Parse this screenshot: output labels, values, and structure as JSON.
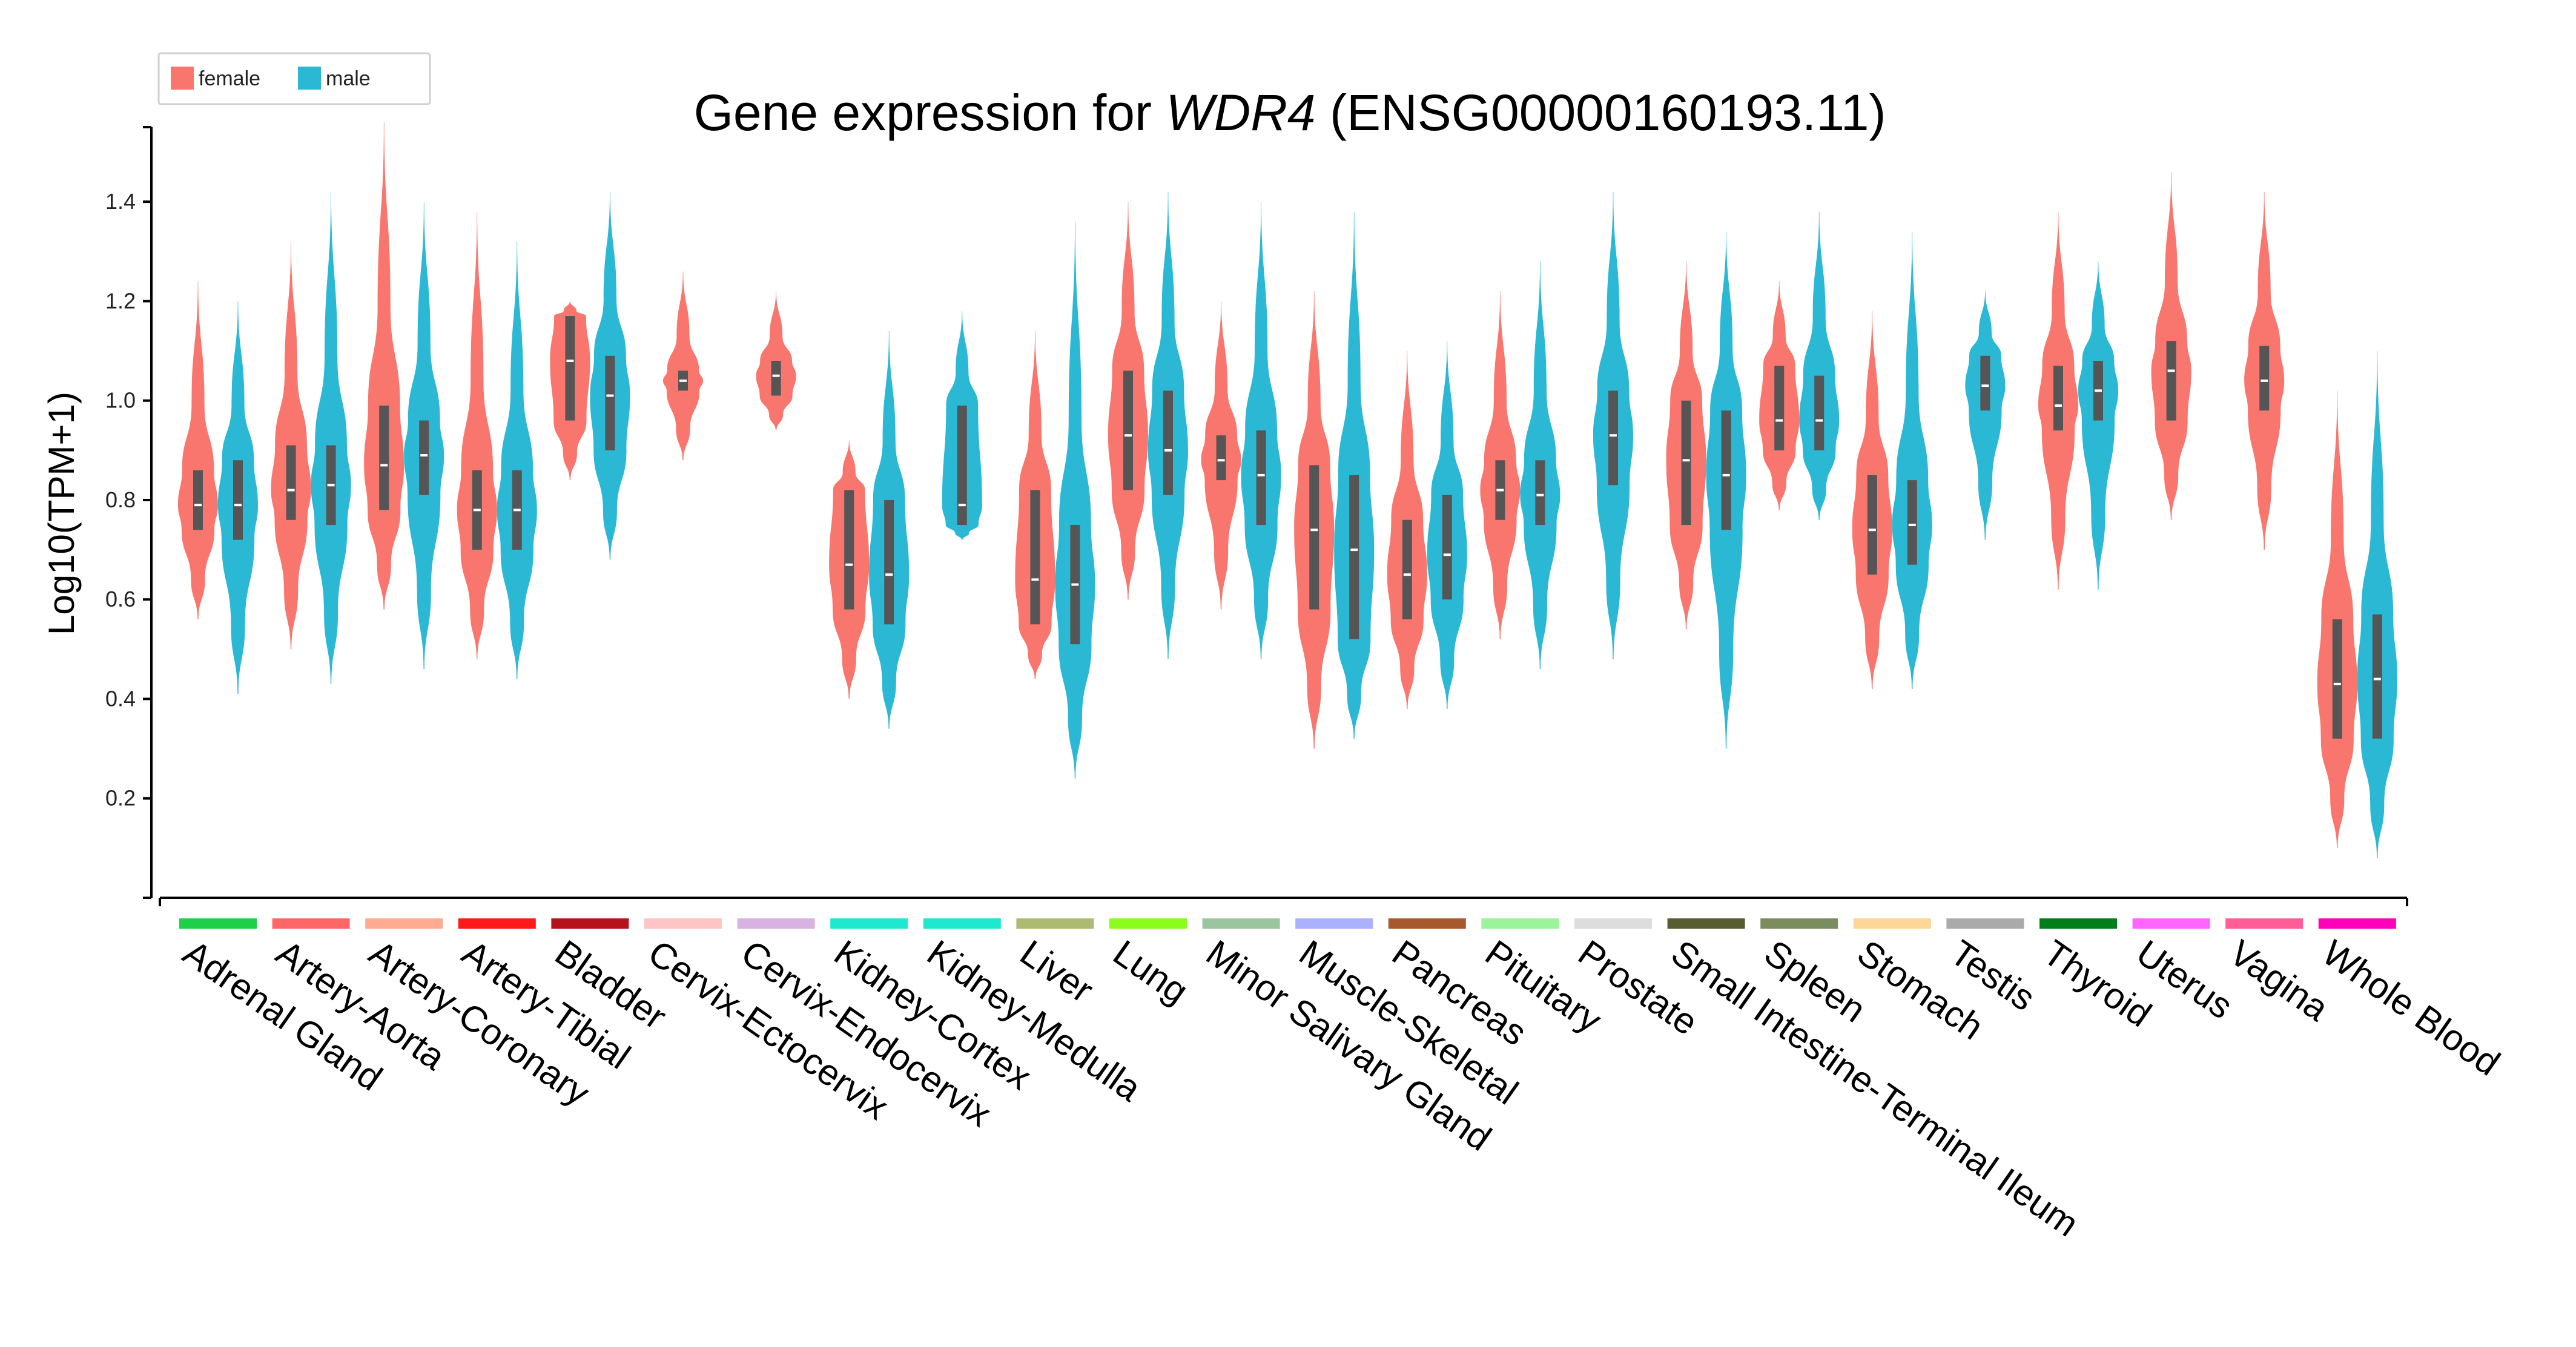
{
  "chart_data": {
    "type": "violin",
    "title_prefix": "Gene expression for ",
    "title_gene": "WDR4",
    "title_suffix": " (ENSG00000160193.11)",
    "ylabel": "Log10(TPM+1)",
    "xlabel": "",
    "ylim": [
      0,
      1.55
    ],
    "yticks": [
      0.2,
      0.4,
      0.6,
      0.8,
      1.0,
      1.2,
      1.4
    ],
    "ytick_labels": [
      "0.2",
      "0.4",
      "0.6",
      "0.8",
      "1.0",
      "1.2",
      "1.4"
    ],
    "legend": {
      "position": "top-left",
      "entries": [
        {
          "label": "female",
          "color": "#f8766d"
        },
        {
          "label": "male",
          "color": "#2ab8d4"
        }
      ]
    },
    "colors": {
      "female": "#f8766d",
      "male": "#2ab8d4",
      "box": "#555555",
      "median": "#ffffff"
    },
    "categories": [
      {
        "name": "Adrenal Gland",
        "tissue_color": "#1fcf4a",
        "violins": [
          {
            "sex": "female",
            "min": 0.56,
            "q1": 0.74,
            "median": 0.79,
            "q3": 0.86,
            "max": 1.24
          },
          {
            "sex": "male",
            "min": 0.41,
            "q1": 0.72,
            "median": 0.79,
            "q3": 0.88,
            "max": 1.2
          }
        ]
      },
      {
        "name": "Artery-Aorta",
        "tissue_color": "#ff6666",
        "violins": [
          {
            "sex": "female",
            "min": 0.5,
            "q1": 0.76,
            "median": 0.82,
            "q3": 0.91,
            "max": 1.32
          },
          {
            "sex": "male",
            "min": 0.43,
            "q1": 0.75,
            "median": 0.83,
            "q3": 0.91,
            "max": 1.42
          }
        ]
      },
      {
        "name": "Artery-Coronary",
        "tissue_color": "#ffab92",
        "violins": [
          {
            "sex": "female",
            "min": 0.58,
            "q1": 0.78,
            "median": 0.87,
            "q3": 0.99,
            "max": 1.56
          },
          {
            "sex": "male",
            "min": 0.46,
            "q1": 0.81,
            "median": 0.89,
            "q3": 0.96,
            "max": 1.4
          }
        ]
      },
      {
        "name": "Artery-Tibial",
        "tissue_color": "#ff1a1a",
        "violins": [
          {
            "sex": "female",
            "min": 0.48,
            "q1": 0.7,
            "median": 0.78,
            "q3": 0.86,
            "max": 1.38
          },
          {
            "sex": "male",
            "min": 0.44,
            "q1": 0.7,
            "median": 0.78,
            "q3": 0.86,
            "max": 1.32
          }
        ]
      },
      {
        "name": "Bladder",
        "tissue_color": "#b5121b",
        "violins": [
          {
            "sex": "female",
            "min": 0.84,
            "q1": 0.96,
            "median": 1.08,
            "q3": 1.17,
            "max": 1.2
          },
          {
            "sex": "male",
            "min": 0.68,
            "q1": 0.9,
            "median": 1.01,
            "q3": 1.09,
            "max": 1.42
          }
        ]
      },
      {
        "name": "Cervix-Ectocervix",
        "tissue_color": "#ffc4c4",
        "violins": [
          {
            "sex": "female",
            "min": 0.88,
            "q1": 1.02,
            "median": 1.04,
            "q3": 1.06,
            "max": 1.26
          }
        ]
      },
      {
        "name": "Cervix-Endocervix",
        "tissue_color": "#d8b2e0",
        "violins": [
          {
            "sex": "female",
            "min": 0.94,
            "q1": 1.01,
            "median": 1.05,
            "q3": 1.08,
            "max": 1.22
          }
        ]
      },
      {
        "name": "Kidney-Cortex",
        "tissue_color": "#1fe8d0",
        "violins": [
          {
            "sex": "female",
            "min": 0.4,
            "q1": 0.58,
            "median": 0.67,
            "q3": 0.82,
            "max": 0.92
          },
          {
            "sex": "male",
            "min": 0.34,
            "q1": 0.55,
            "median": 0.65,
            "q3": 0.8,
            "max": 1.14
          }
        ]
      },
      {
        "name": "Kidney-Medulla",
        "tissue_color": "#1fe8d0",
        "violins": [
          {
            "sex": "male",
            "min": 0.72,
            "q1": 0.75,
            "median": 0.79,
            "q3": 0.99,
            "max": 1.18
          }
        ]
      },
      {
        "name": "Liver",
        "tissue_color": "#adbb72",
        "violins": [
          {
            "sex": "female",
            "min": 0.44,
            "q1": 0.55,
            "median": 0.64,
            "q3": 0.82,
            "max": 1.14
          },
          {
            "sex": "male",
            "min": 0.24,
            "q1": 0.51,
            "median": 0.63,
            "q3": 0.75,
            "max": 1.36
          }
        ]
      },
      {
        "name": "Lung",
        "tissue_color": "#8bfc1b",
        "violins": [
          {
            "sex": "female",
            "min": 0.6,
            "q1": 0.82,
            "median": 0.93,
            "q3": 1.06,
            "max": 1.4
          },
          {
            "sex": "male",
            "min": 0.48,
            "q1": 0.81,
            "median": 0.9,
            "q3": 1.02,
            "max": 1.42
          }
        ]
      },
      {
        "name": "Minor Salivary Gland",
        "tissue_color": "#9bc59e",
        "violins": [
          {
            "sex": "female",
            "min": 0.58,
            "q1": 0.84,
            "median": 0.88,
            "q3": 0.93,
            "max": 1.2
          },
          {
            "sex": "male",
            "min": 0.48,
            "q1": 0.75,
            "median": 0.85,
            "q3": 0.94,
            "max": 1.4
          }
        ]
      },
      {
        "name": "Muscle-Skeletal",
        "tissue_color": "#aab2ff",
        "violins": [
          {
            "sex": "female",
            "min": 0.3,
            "q1": 0.58,
            "median": 0.74,
            "q3": 0.87,
            "max": 1.22
          },
          {
            "sex": "male",
            "min": 0.32,
            "q1": 0.52,
            "median": 0.7,
            "q3": 0.85,
            "max": 1.38
          }
        ]
      },
      {
        "name": "Pancreas",
        "tissue_color": "#a7592d",
        "violins": [
          {
            "sex": "female",
            "min": 0.38,
            "q1": 0.56,
            "median": 0.65,
            "q3": 0.76,
            "max": 1.1
          },
          {
            "sex": "male",
            "min": 0.38,
            "q1": 0.6,
            "median": 0.69,
            "q3": 0.81,
            "max": 1.12
          }
        ]
      },
      {
        "name": "Pituitary",
        "tissue_color": "#9bf39b",
        "violins": [
          {
            "sex": "female",
            "min": 0.52,
            "q1": 0.76,
            "median": 0.82,
            "q3": 0.88,
            "max": 1.22
          },
          {
            "sex": "male",
            "min": 0.46,
            "q1": 0.75,
            "median": 0.81,
            "q3": 0.88,
            "max": 1.28
          }
        ]
      },
      {
        "name": "Prostate",
        "tissue_color": "#dddddd",
        "violins": [
          {
            "sex": "male",
            "min": 0.48,
            "q1": 0.83,
            "median": 0.93,
            "q3": 1.02,
            "max": 1.42
          }
        ]
      },
      {
        "name": "Small Intestine-Terminal Ileum",
        "tissue_color": "#575d30",
        "violins": [
          {
            "sex": "female",
            "min": 0.54,
            "q1": 0.75,
            "median": 0.88,
            "q3": 1.0,
            "max": 1.28
          },
          {
            "sex": "male",
            "min": 0.3,
            "q1": 0.74,
            "median": 0.85,
            "q3": 0.98,
            "max": 1.34
          }
        ]
      },
      {
        "name": "Spleen",
        "tissue_color": "#7b8c5f",
        "violins": [
          {
            "sex": "female",
            "min": 0.78,
            "q1": 0.9,
            "median": 0.96,
            "q3": 1.07,
            "max": 1.24
          },
          {
            "sex": "male",
            "min": 0.76,
            "q1": 0.9,
            "median": 0.96,
            "q3": 1.05,
            "max": 1.38
          }
        ]
      },
      {
        "name": "Stomach",
        "tissue_color": "#fed697",
        "violins": [
          {
            "sex": "female",
            "min": 0.42,
            "q1": 0.65,
            "median": 0.74,
            "q3": 0.85,
            "max": 1.18
          },
          {
            "sex": "male",
            "min": 0.42,
            "q1": 0.67,
            "median": 0.75,
            "q3": 0.84,
            "max": 1.34
          }
        ]
      },
      {
        "name": "Testis",
        "tissue_color": "#aaaaaa",
        "violins": [
          {
            "sex": "male",
            "min": 0.72,
            "q1": 0.98,
            "median": 1.03,
            "q3": 1.09,
            "max": 1.22
          }
        ]
      },
      {
        "name": "Thyroid",
        "tissue_color": "#007e1a",
        "violins": [
          {
            "sex": "female",
            "min": 0.62,
            "q1": 0.94,
            "median": 0.99,
            "q3": 1.07,
            "max": 1.38
          },
          {
            "sex": "male",
            "min": 0.62,
            "q1": 0.96,
            "median": 1.02,
            "q3": 1.08,
            "max": 1.28
          }
        ]
      },
      {
        "name": "Uterus",
        "tissue_color": "#ff66ff",
        "violins": [
          {
            "sex": "female",
            "min": 0.76,
            "q1": 0.96,
            "median": 1.06,
            "q3": 1.12,
            "max": 1.46
          }
        ]
      },
      {
        "name": "Vagina",
        "tissue_color": "#ff5d97",
        "violins": [
          {
            "sex": "female",
            "min": 0.7,
            "q1": 0.98,
            "median": 1.04,
            "q3": 1.11,
            "max": 1.42
          }
        ]
      },
      {
        "name": "Whole Blood",
        "tissue_color": "#ff00bb",
        "violins": [
          {
            "sex": "female",
            "min": 0.1,
            "q1": 0.32,
            "median": 0.43,
            "q3": 0.56,
            "max": 1.02
          },
          {
            "sex": "male",
            "min": 0.08,
            "q1": 0.32,
            "median": 0.44,
            "q3": 0.57,
            "max": 1.1
          }
        ]
      }
    ]
  }
}
